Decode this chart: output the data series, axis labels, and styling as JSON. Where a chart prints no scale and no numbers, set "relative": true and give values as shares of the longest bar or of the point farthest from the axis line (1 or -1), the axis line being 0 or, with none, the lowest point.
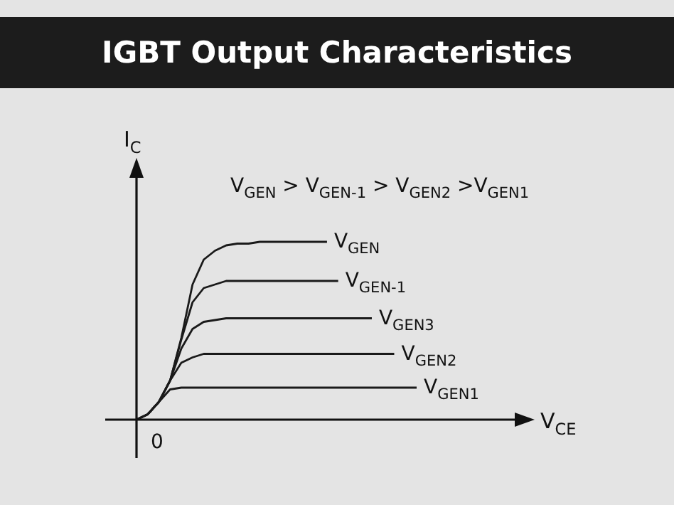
{
  "chart_data": {
    "type": "line",
    "title": "IGBT Output Characteristics",
    "ylabel": "I$_{C}$",
    "relative": true,
    "marker": "none",
    "line_style": "solid",
    "annotations": [
      "V$_{GEN}$ > V$_{GEN-1}$ > V$_{GEN2}$ >V$_{GEN1}$",
      "0",
      "V$_{CE}$"
    ],
    "categories": [
      null,
      null,
      null,
      null,
      null,
      null,
      null,
      null,
      null,
      null,
      null,
      null,
      null,
      null,
      null,
      null,
      null,
      null,
      null,
      null,
      null,
      null,
      null,
      null,
      null,
      null
    ],
    "series": [
      {
        "name": "V$_{GEN}$",
        "color": "#1a1a1a",
        "values": [
          0,
          0.03,
          0.1,
          0.22,
          0.46,
          0.76,
          0.9,
          0.95,
          0.98,
          0.99,
          0.99,
          1,
          1,
          1,
          1,
          1,
          1,
          1,
          null,
          null,
          null,
          null,
          null,
          null,
          null,
          null
        ]
      },
      {
        "name": "V$_{GEN-1}$",
        "color": "#1a1a1a",
        "values": [
          0,
          0.03,
          0.1,
          0.22,
          0.45,
          0.66,
          0.74,
          0.76,
          0.78,
          0.78,
          0.78,
          0.78,
          0.78,
          0.78,
          0.78,
          0.78,
          0.78,
          0.78,
          0.78,
          null,
          null,
          null,
          null,
          null,
          null,
          null
        ]
      },
      {
        "name": "V$_{GEN3}$",
        "color": "#1a1a1a",
        "values": [
          0,
          0.03,
          0.1,
          0.22,
          0.4,
          0.51,
          0.55,
          0.56,
          0.57,
          0.57,
          0.57,
          0.57,
          0.57,
          0.57,
          0.57,
          0.57,
          0.57,
          0.57,
          0.57,
          0.57,
          0.57,
          0.57,
          null,
          null,
          null,
          null
        ]
      },
      {
        "name": "V$_{GEN2}$",
        "color": "#1a1a1a",
        "values": [
          0,
          0.03,
          0.1,
          0.22,
          0.32,
          0.35,
          0.37,
          0.37,
          0.37,
          0.37,
          0.37,
          0.37,
          0.37,
          0.37,
          0.37,
          0.37,
          0.37,
          0.37,
          0.37,
          0.37,
          0.37,
          0.37,
          0.37,
          0.37,
          null,
          null
        ]
      },
      {
        "name": "V$_{GEN1}$",
        "color": "#1a1a1a",
        "values": [
          0,
          0.03,
          0.1,
          0.17,
          0.18,
          0.18,
          0.18,
          0.18,
          0.18,
          0.18,
          0.18,
          0.18,
          0.18,
          0.18,
          0.18,
          0.18,
          0.18,
          0.18,
          0.18,
          0.18,
          0.18,
          0.18,
          0.18,
          0.18,
          0.18,
          0.18
        ]
      }
    ]
  }
}
